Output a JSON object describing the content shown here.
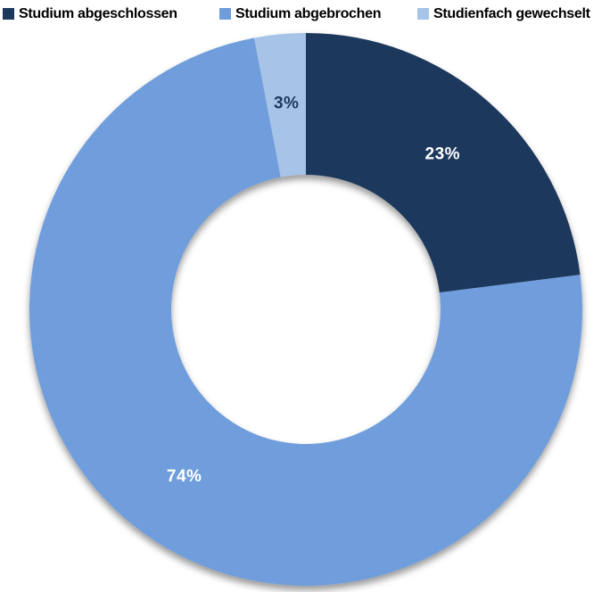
{
  "chart_data": {
    "type": "pie",
    "subtype": "donut",
    "title": "",
    "categories": [
      "Studium abgeschlossen",
      "Studium abgebrochen",
      "Studienfach gewechselt"
    ],
    "values": [
      23,
      74,
      3
    ],
    "unit": "%",
    "slice_colors": [
      "#1E385C",
      "#6F9DDB",
      "#A6C3E8"
    ],
    "data_labels": [
      "23%",
      "74%",
      "3%"
    ],
    "data_label_colors": [
      "#FFFFFF",
      "#FFFFFF",
      "#1E385C"
    ],
    "legend_position": "top",
    "start_angle_deg": 0,
    "clockwise": true,
    "donut_hole_ratio": 0.487,
    "label_radius_ratio": 0.748,
    "background_color": "#FFFFFF",
    "shadow": "soft drop shadow below ring"
  }
}
